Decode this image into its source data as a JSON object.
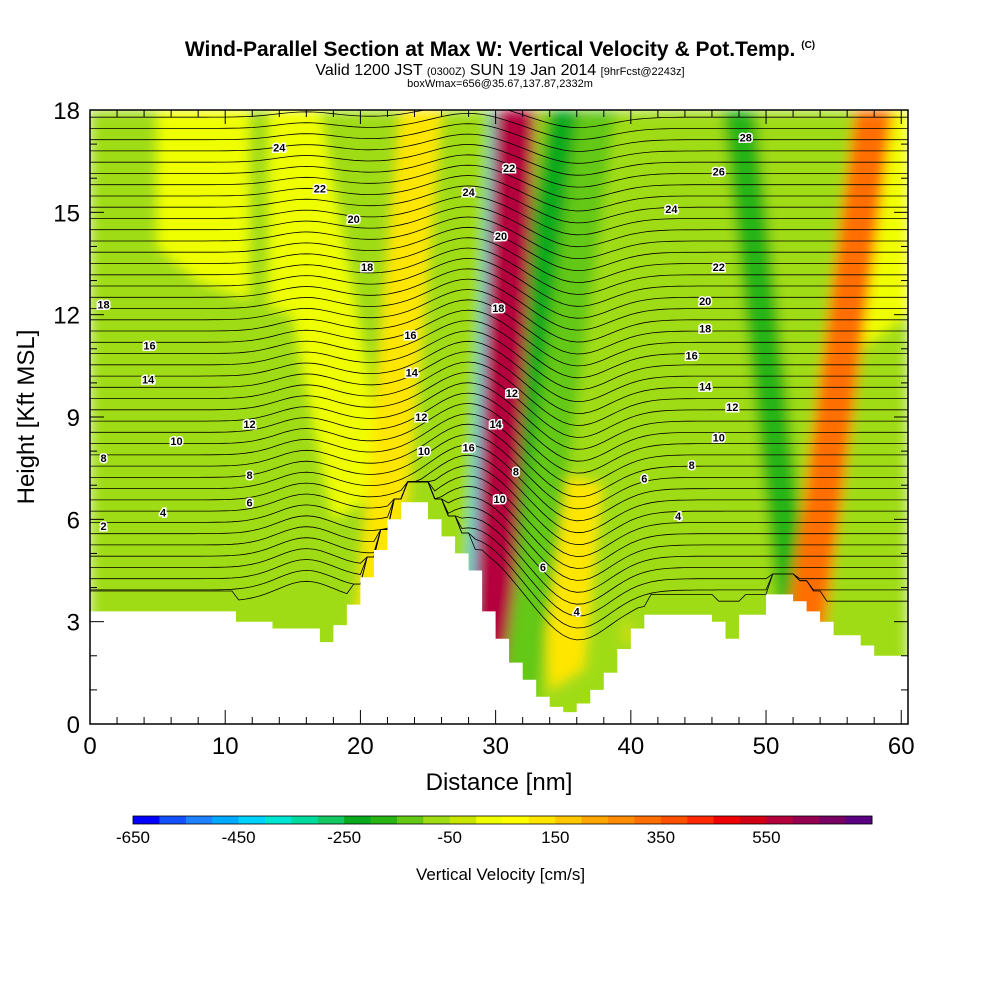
{
  "header": {
    "title": "Wind-Parallel Section at Max W: Vertical Velocity & Pot.Temp.",
    "title_mark": "(C)",
    "valid_prefix": "Valid 1200 JST",
    "valid_utc": "(0300Z)",
    "valid_date": "SUN 19 Jan 2014",
    "forecast": "[9hrFcst@2243z]",
    "box_info": "boxWmax=656@35.67,137.87,2332m"
  },
  "chart_data": {
    "type": "heatmap",
    "xlabel": "Distance [nm]",
    "ylabel": "Height [Kft MSL]",
    "xlim": [
      0,
      60.5
    ],
    "ylim": [
      0,
      18
    ],
    "x_ticks": [
      0,
      10,
      20,
      30,
      40,
      50,
      60
    ],
    "y_ticks": [
      0,
      3,
      6,
      9,
      12,
      15,
      18
    ],
    "terrain_kft": [
      [
        0,
        3.3
      ],
      [
        10.8,
        3.3
      ],
      [
        10.8,
        3.0
      ],
      [
        13.5,
        3.0
      ],
      [
        13.5,
        2.8
      ],
      [
        17,
        2.8
      ],
      [
        17,
        2.4
      ],
      [
        18,
        2.4
      ],
      [
        18,
        2.9
      ],
      [
        19,
        2.9
      ],
      [
        19,
        3.5
      ],
      [
        20,
        3.5
      ],
      [
        20,
        4.3
      ],
      [
        21,
        4.3
      ],
      [
        21,
        5.1
      ],
      [
        22,
        5.1
      ],
      [
        22,
        6.0
      ],
      [
        23,
        6.0
      ],
      [
        23,
        6.5
      ],
      [
        25,
        6.5
      ],
      [
        25,
        6.0
      ],
      [
        26,
        6.0
      ],
      [
        26,
        5.5
      ],
      [
        27,
        5.5
      ],
      [
        27,
        5.0
      ],
      [
        28,
        5.0
      ],
      [
        28,
        4.5
      ],
      [
        29,
        4.5
      ],
      [
        29,
        3.3
      ],
      [
        30,
        3.3
      ],
      [
        30,
        2.5
      ],
      [
        31,
        2.5
      ],
      [
        31,
        1.8
      ],
      [
        32,
        1.8
      ],
      [
        32,
        1.3
      ],
      [
        33,
        1.3
      ],
      [
        33,
        0.8
      ],
      [
        34,
        0.8
      ],
      [
        34,
        0.5
      ],
      [
        35,
        0.5
      ],
      [
        35,
        0.35
      ],
      [
        36,
        0.35
      ],
      [
        36,
        0.6
      ],
      [
        37,
        0.6
      ],
      [
        37,
        1.0
      ],
      [
        38,
        1.0
      ],
      [
        38,
        1.5
      ],
      [
        39,
        1.5
      ],
      [
        39,
        2.2
      ],
      [
        40,
        2.2
      ],
      [
        40,
        2.8
      ],
      [
        41,
        2.8
      ],
      [
        41,
        3.2
      ],
      [
        46,
        3.2
      ],
      [
        46,
        3.0
      ],
      [
        47,
        3.0
      ],
      [
        47,
        2.5
      ],
      [
        48,
        2.5
      ],
      [
        48,
        3.2
      ],
      [
        50,
        3.2
      ],
      [
        50,
        3.8
      ],
      [
        52,
        3.8
      ],
      [
        52,
        3.6
      ],
      [
        53,
        3.6
      ],
      [
        53,
        3.3
      ],
      [
        54,
        3.3
      ],
      [
        54,
        3.0
      ],
      [
        55,
        3.0
      ],
      [
        55,
        2.6
      ],
      [
        57,
        2.6
      ],
      [
        57,
        2.3
      ],
      [
        58,
        2.3
      ],
      [
        58,
        2.0
      ],
      [
        60.5,
        2.0
      ]
    ],
    "velocity_bands": [
      {
        "x_bottom": 28.5,
        "x_top": 35.5,
        "width": 3.2,
        "value": -220
      },
      {
        "x_bottom": 28.2,
        "x_top": 30.5,
        "width": 1.6,
        "value": -450
      },
      {
        "x_bottom": 29.5,
        "x_top": 31.5,
        "width": 3.0,
        "value": 550
      },
      {
        "x_bottom": 20.5,
        "x_top": 24.5,
        "width": 3.0,
        "value": 100
      },
      {
        "x_bottom": 31.5,
        "x_top": 37.5,
        "width": 2.8,
        "value": -150
      },
      {
        "x_bottom": 37.5,
        "x_top": 42,
        "width": 2.8,
        "value": -80
      },
      {
        "x_bottom": 53,
        "x_top": 48,
        "width": 2.4,
        "value": -200
      },
      {
        "x_bottom": 52,
        "x_top": 58,
        "width": 2.8,
        "value": 300
      },
      {
        "x_bottom": 12.5,
        "x_top": 12.5,
        "width": 1.5,
        "value": -80
      }
    ],
    "contour_labels": [
      {
        "text": "24",
        "x": 14.0,
        "y": 16.9
      },
      {
        "text": "22",
        "x": 17.0,
        "y": 15.7
      },
      {
        "text": "20",
        "x": 19.5,
        "y": 14.8
      },
      {
        "text": "18",
        "x": 20.5,
        "y": 13.4
      },
      {
        "text": "18",
        "x": 1.0,
        "y": 12.3
      },
      {
        "text": "16",
        "x": 4.4,
        "y": 11.1
      },
      {
        "text": "14",
        "x": 4.3,
        "y": 10.1
      },
      {
        "text": "12",
        "x": 11.8,
        "y": 8.8
      },
      {
        "text": "10",
        "x": 6.4,
        "y": 8.3
      },
      {
        "text": "8",
        "x": 1.0,
        "y": 7.8
      },
      {
        "text": "8",
        "x": 11.8,
        "y": 7.3
      },
      {
        "text": "6",
        "x": 11.8,
        "y": 6.5
      },
      {
        "text": "4",
        "x": 5.4,
        "y": 6.2
      },
      {
        "text": "2",
        "x": 1.0,
        "y": 5.8
      },
      {
        "text": "16",
        "x": 23.7,
        "y": 11.4
      },
      {
        "text": "14",
        "x": 23.8,
        "y": 10.3
      },
      {
        "text": "12",
        "x": 24.5,
        "y": 9.0
      },
      {
        "text": "10",
        "x": 24.7,
        "y": 8.0
      },
      {
        "text": "16",
        "x": 28.0,
        "y": 8.1
      },
      {
        "text": "24",
        "x": 28.0,
        "y": 15.6
      },
      {
        "text": "22",
        "x": 31.0,
        "y": 16.3
      },
      {
        "text": "20",
        "x": 30.4,
        "y": 14.3
      },
      {
        "text": "18",
        "x": 30.2,
        "y": 12.2
      },
      {
        "text": "12",
        "x": 31.2,
        "y": 9.7
      },
      {
        "text": "14",
        "x": 30.0,
        "y": 8.8
      },
      {
        "text": "8",
        "x": 31.5,
        "y": 7.4
      },
      {
        "text": "10",
        "x": 30.3,
        "y": 6.6
      },
      {
        "text": "6",
        "x": 33.5,
        "y": 4.6
      },
      {
        "text": "4",
        "x": 36.0,
        "y": 3.3
      },
      {
        "text": "28",
        "x": 48.5,
        "y": 17.2
      },
      {
        "text": "26",
        "x": 46.5,
        "y": 16.2
      },
      {
        "text": "24",
        "x": 43.0,
        "y": 15.1
      },
      {
        "text": "22",
        "x": 46.5,
        "y": 13.4
      },
      {
        "text": "20",
        "x": 45.5,
        "y": 12.4
      },
      {
        "text": "18",
        "x": 45.5,
        "y": 11.6
      },
      {
        "text": "16",
        "x": 44.5,
        "y": 10.8
      },
      {
        "text": "14",
        "x": 45.5,
        "y": 9.9
      },
      {
        "text": "12",
        "x": 47.5,
        "y": 9.3
      },
      {
        "text": "10",
        "x": 46.5,
        "y": 8.4
      },
      {
        "text": "8",
        "x": 44.5,
        "y": 7.6
      },
      {
        "text": "6",
        "x": 41.0,
        "y": 7.2
      },
      {
        "text": "4",
        "x": 43.5,
        "y": 6.1
      }
    ],
    "colorbar": {
      "label": "Vertical Velocity [cm/s]",
      "tick_labels": [
        "-650",
        "-450",
        "-250",
        "-50",
        "150",
        "350",
        "550"
      ],
      "colors": [
        "#0000ff",
        "#1450ff",
        "#1e82ff",
        "#00aaff",
        "#00d2ff",
        "#00e6d2",
        "#00dca0",
        "#14c864",
        "#0aaa1e",
        "#28b414",
        "#64c814",
        "#a0dc14",
        "#c8e600",
        "#f0ff00",
        "#ffff00",
        "#ffe600",
        "#ffc800",
        "#ffa500",
        "#ff8c00",
        "#ff6e00",
        "#ff5000",
        "#ff2800",
        "#f00000",
        "#d20014",
        "#b4003c",
        "#960050",
        "#780064",
        "#5a0082"
      ]
    }
  }
}
